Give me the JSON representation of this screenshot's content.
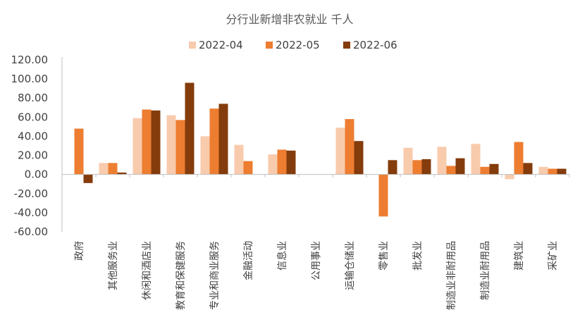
{
  "chart_data": {
    "type": "bar",
    "title": "分行业新增非农就业 千人",
    "xlabel": "",
    "ylabel": "",
    "ylim": [
      -60,
      120
    ],
    "yticks": [
      "120.00",
      "100.00",
      "80.00",
      "60.00",
      "40.00",
      "20.00",
      "0.00",
      "-20.00",
      "-40.00",
      "-60.00"
    ],
    "categories": [
      "政府",
      "其他服务业",
      "休闲和酒店业",
      "教育和保健服务",
      "专业和商业服务",
      "金融活动",
      "信息业",
      "公用事业",
      "运输仓储业",
      "零售业",
      "批发业",
      "制造业非耐用品",
      "制造业耐用品",
      "建筑业",
      "采矿业"
    ],
    "series": [
      {
        "name": "2022-04",
        "color": "#F8CBAD",
        "values": [
          0,
          12,
          59,
          62,
          40,
          31,
          21,
          0,
          49,
          0,
          28,
          29,
          32,
          -5,
          8
        ]
      },
      {
        "name": "2022-05",
        "color": "#ED7D31",
        "values": [
          48,
          12,
          68,
          57,
          69,
          14,
          26,
          0,
          58,
          -44,
          15,
          9,
          8,
          34,
          6
        ]
      },
      {
        "name": "2022-06",
        "color": "#843C0C",
        "values": [
          -9,
          2,
          67,
          96,
          74,
          0,
          25,
          0,
          35,
          15,
          16,
          17,
          11,
          12,
          6
        ]
      }
    ],
    "legend_position": "top",
    "grid": false
  }
}
